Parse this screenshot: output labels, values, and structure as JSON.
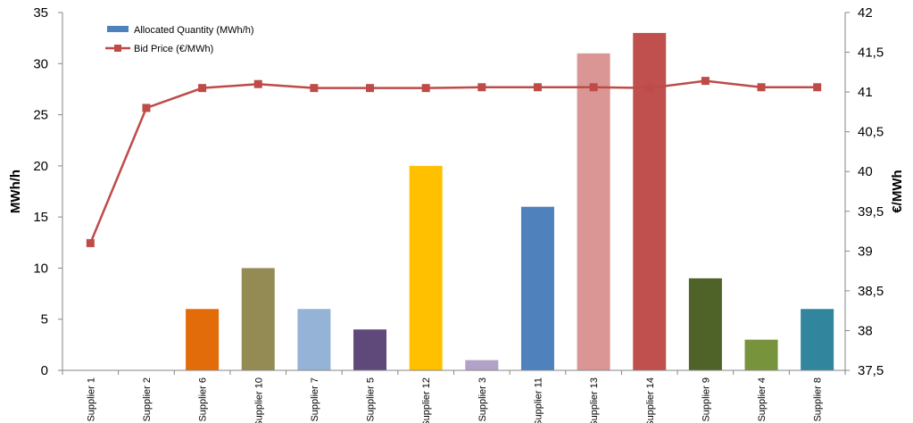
{
  "chart_data": {
    "type": "bar",
    "categories": [
      "Supplier 1",
      "Supplier 2",
      "Supplier 6",
      "Supplier 10",
      "Supplier 7",
      "Supplier 5",
      "Supplier 12",
      "Supplier 3",
      "Supplier 11",
      "Supplier 13",
      "Supplier 14",
      "Supplier 9",
      "Supplier 4",
      "Supplier 8"
    ],
    "series": [
      {
        "name": "Allocated Quantity (MWh/h)",
        "type": "bar",
        "axis": "left",
        "values": [
          0,
          0,
          6,
          10,
          6,
          4,
          20,
          1,
          16,
          31,
          33,
          9,
          3,
          6
        ],
        "colors": [
          "#4f81bd",
          "#4f81bd",
          "#e36c0a",
          "#948a54",
          "#95b3d7",
          "#5f497a",
          "#ffc000",
          "#b2a2c7",
          "#4f81bd",
          "#d99694",
          "#c0504d",
          "#4f6228",
          "#77933c",
          "#31859c"
        ],
        "legend_color": "#4f81bd"
      },
      {
        "name": "Bid Price (€/MWh)",
        "type": "line",
        "axis": "right",
        "values": [
          39.1,
          40.8,
          41.05,
          41.1,
          41.05,
          41.05,
          41.05,
          41.06,
          41.06,
          41.06,
          41.05,
          41.14,
          41.06,
          41.06
        ],
        "color": "#be4b48"
      }
    ],
    "ylabel": "MWh/h",
    "y2label": "€/MWh",
    "ylim": [
      0,
      35
    ],
    "yticks": [
      "0",
      "5",
      "10",
      "15",
      "20",
      "25",
      "30",
      "35"
    ],
    "y2lim": [
      37.5,
      42
    ],
    "y2ticks": [
      "37,5",
      "38",
      "38,5",
      "39",
      "39,5",
      "40",
      "40,5",
      "41",
      "41,5",
      "42"
    ],
    "legend_position": "top-left",
    "grid": false
  }
}
